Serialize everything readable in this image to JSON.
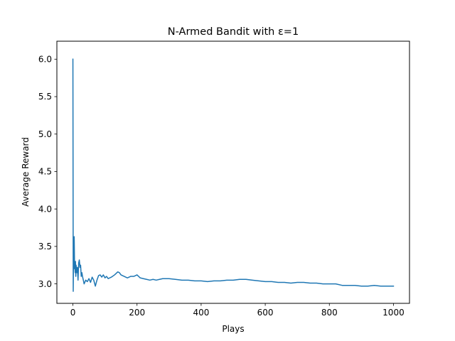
{
  "chart_data": {
    "type": "line",
    "title": "N-Armed Bandit with ε=1",
    "xlabel": "Plays",
    "ylabel": "Average Reward",
    "xlim": [
      -50,
      1050
    ],
    "ylim": [
      2.74,
      6.24
    ],
    "xticks": [
      0,
      200,
      400,
      600,
      800,
      1000
    ],
    "yticks": [
      3.0,
      3.5,
      4.0,
      4.5,
      5.0,
      5.5,
      6.0
    ],
    "ytick_labels": [
      "3.0",
      "3.5",
      "4.0",
      "4.5",
      "5.0",
      "5.5",
      "6.0"
    ],
    "grid": false,
    "series": [
      {
        "color": "#1f77b4",
        "x": [
          0,
          1,
          2,
          3,
          4,
          5,
          6,
          7,
          8,
          9,
          10,
          12,
          14,
          16,
          18,
          20,
          22,
          24,
          26,
          28,
          30,
          35,
          40,
          45,
          50,
          55,
          60,
          65,
          70,
          75,
          80,
          85,
          90,
          95,
          100,
          105,
          110,
          120,
          130,
          140,
          145,
          150,
          160,
          170,
          180,
          190,
          200,
          210,
          220,
          230,
          240,
          250,
          260,
          270,
          280,
          300,
          320,
          340,
          360,
          380,
          400,
          420,
          440,
          460,
          480,
          500,
          520,
          540,
          560,
          580,
          600,
          620,
          640,
          660,
          680,
          700,
          720,
          740,
          760,
          780,
          800,
          820,
          840,
          860,
          880,
          900,
          920,
          940,
          960,
          980,
          1000
        ],
        "y": [
          6.0,
          2.9,
          3.35,
          3.2,
          3.63,
          3.3,
          3.25,
          3.15,
          3.3,
          3.1,
          3.25,
          3.15,
          3.22,
          3.05,
          3.28,
          3.32,
          3.22,
          3.25,
          3.1,
          3.15,
          3.1,
          3.0,
          3.05,
          3.03,
          3.07,
          3.02,
          3.09,
          3.05,
          2.97,
          3.05,
          3.11,
          3.12,
          3.09,
          3.12,
          3.08,
          3.1,
          3.07,
          3.09,
          3.12,
          3.16,
          3.15,
          3.12,
          3.1,
          3.08,
          3.1,
          3.1,
          3.12,
          3.08,
          3.07,
          3.06,
          3.05,
          3.06,
          3.05,
          3.06,
          3.07,
          3.07,
          3.06,
          3.05,
          3.05,
          3.04,
          3.04,
          3.03,
          3.04,
          3.04,
          3.05,
          3.05,
          3.06,
          3.06,
          3.05,
          3.04,
          3.03,
          3.03,
          3.02,
          3.02,
          3.01,
          3.02,
          3.02,
          3.01,
          3.01,
          3.0,
          3.0,
          3.0,
          2.98,
          2.98,
          2.98,
          2.97,
          2.97,
          2.98,
          2.97,
          2.97,
          2.97
        ]
      }
    ]
  }
}
